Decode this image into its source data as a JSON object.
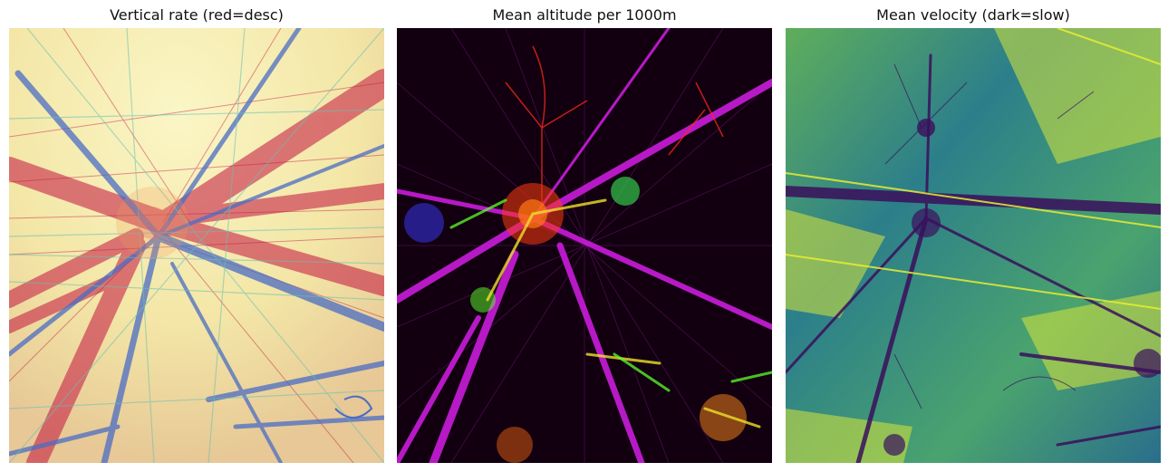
{
  "panels": [
    {
      "title": "Vertical rate (red=desc)",
      "palette": {
        "background": "#f3efb2",
        "descending": "#c3123f",
        "climbing": "#4a6cc4",
        "level": "#6ac0b2",
        "warm": "#f09a5b"
      }
    },
    {
      "title": "Mean altitude per 1000m",
      "palette": {
        "background": "#120010",
        "magenta": "#d41ee6",
        "red": "#ff2a1a",
        "orange": "#ff8a1a",
        "yellow": "#f0e02a",
        "green": "#5cff2a",
        "blue": "#3a3aff"
      }
    },
    {
      "title": "Mean velocity (dark=slow)",
      "palette": {
        "background": "#3c8f7e",
        "slow": "#3a0f5c",
        "mid": "#2e6a8c",
        "fast": "#cfe040",
        "fastest": "#e6ec34"
      }
    }
  ]
}
